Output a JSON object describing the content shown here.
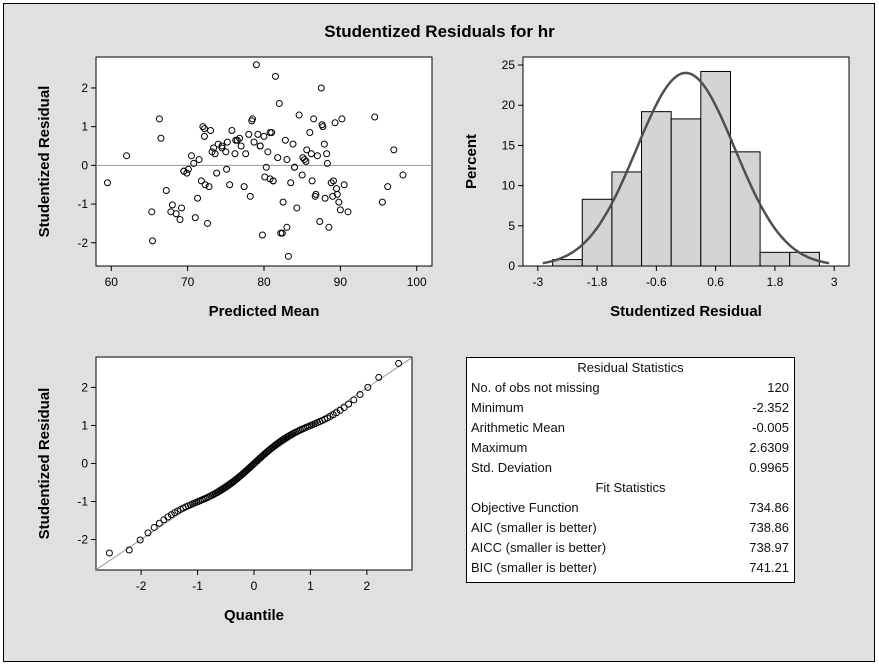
{
  "title": "Studentized Residuals for hr",
  "chart_data": [
    {
      "type": "scatter",
      "xlabel": "Predicted Mean",
      "ylabel": "Studentized Residual",
      "xlim": [
        58,
        102
      ],
      "ylim": [
        -2.6,
        2.8
      ],
      "xticks": [
        "60",
        "70",
        "80",
        "90",
        "100"
      ],
      "yticks": [
        "2",
        "1",
        "0",
        "-1",
        "-2"
      ],
      "reference_line_y": 0,
      "points": [
        [
          59.5,
          -0.45
        ],
        [
          62,
          0.25
        ],
        [
          65.3,
          -1.2
        ],
        [
          65.4,
          -1.95
        ],
        [
          66.3,
          1.2
        ],
        [
          66.5,
          0.7
        ],
        [
          67.2,
          -0.65
        ],
        [
          67.8,
          -1.2
        ],
        [
          68,
          -1.02
        ],
        [
          68.5,
          -1.25
        ],
        [
          69,
          -1.4
        ],
        [
          69.2,
          -1.1
        ],
        [
          69.5,
          -0.15
        ],
        [
          69.9,
          -0.2
        ],
        [
          70.1,
          -0.1
        ],
        [
          70.5,
          0.25
        ],
        [
          71,
          -1.35
        ],
        [
          71.3,
          -0.85
        ],
        [
          71.5,
          0.15
        ],
        [
          71.8,
          -0.4
        ],
        [
          72,
          1
        ],
        [
          72.2,
          0.75
        ],
        [
          72.3,
          -0.5
        ],
        [
          72.6,
          -1.5
        ],
        [
          72.8,
          -0.55
        ],
        [
          73,
          0.9
        ],
        [
          73.2,
          0.35
        ],
        [
          73.6,
          0.3
        ],
        [
          73.8,
          -0.2
        ],
        [
          74,
          0.55
        ],
        [
          74.5,
          0.5
        ],
        [
          75,
          0.35
        ],
        [
          75.2,
          0.6
        ],
        [
          75.5,
          -0.5
        ],
        [
          75.8,
          0.9
        ],
        [
          76.2,
          0.3
        ],
        [
          76.5,
          0.65
        ],
        [
          77,
          0.5
        ],
        [
          77.4,
          -0.55
        ],
        [
          77.6,
          0.3
        ],
        [
          78,
          0.8
        ],
        [
          78.2,
          -0.8
        ],
        [
          78.5,
          1.2
        ],
        [
          78.7,
          0.6
        ],
        [
          79,
          2.6
        ],
        [
          79.2,
          0.8
        ],
        [
          79.5,
          0.5
        ],
        [
          79.8,
          -1.8
        ],
        [
          80,
          0.75
        ],
        [
          80.3,
          -0.05
        ],
        [
          80.5,
          0.35
        ],
        [
          80.8,
          -0.35
        ],
        [
          81,
          0.85
        ],
        [
          81.2,
          -0.4
        ],
        [
          81.5,
          2.3
        ],
        [
          81.8,
          0.2
        ],
        [
          82,
          1.6
        ],
        [
          82.2,
          -1.75
        ],
        [
          82.5,
          -0.95
        ],
        [
          82.8,
          0.65
        ],
        [
          83,
          0.15
        ],
        [
          83.2,
          -2.35
        ],
        [
          83.5,
          -0.45
        ],
        [
          83.8,
          0.55
        ],
        [
          84,
          -0.05
        ],
        [
          84.3,
          -1.1
        ],
        [
          84.6,
          1.3
        ],
        [
          85,
          -0.25
        ],
        [
          85.3,
          0.15
        ],
        [
          85.6,
          0.4
        ],
        [
          86,
          0.85
        ],
        [
          86.3,
          -0.4
        ],
        [
          86.5,
          1.2
        ],
        [
          86.8,
          -0.75
        ],
        [
          87,
          0.25
        ],
        [
          87.3,
          -1.45
        ],
        [
          87.5,
          2
        ],
        [
          87.7,
          1
        ],
        [
          88,
          -0.85
        ],
        [
          88.2,
          0.3
        ],
        [
          88.5,
          -1.6
        ],
        [
          88.8,
          -0.45
        ],
        [
          89,
          -0.8
        ],
        [
          89.3,
          1.1
        ],
        [
          89.5,
          -0.6
        ],
        [
          89.8,
          -0.95
        ],
        [
          90,
          -1.15
        ],
        [
          90.2,
          1.2
        ],
        [
          90.5,
          -0.5
        ],
        [
          91,
          -1.2
        ],
        [
          94.5,
          1.25
        ],
        [
          95.5,
          -0.95
        ],
        [
          96.2,
          -0.55
        ],
        [
          97,
          0.4
        ],
        [
          98.2,
          -0.25
        ],
        [
          69.5,
          -0.15
        ],
        [
          72.2,
          0.95
        ],
        [
          74.5,
          0.45
        ],
        [
          76.3,
          0.65
        ],
        [
          78.4,
          1.15
        ],
        [
          79.5,
          0.5
        ],
        [
          80.8,
          0.85
        ],
        [
          81.2,
          -0.4
        ],
        [
          83,
          -1.6
        ],
        [
          84,
          -0.05
        ],
        [
          85.5,
          0.1
        ],
        [
          86.2,
          0.3
        ],
        [
          87.6,
          1.05
        ],
        [
          88.3,
          0.05
        ],
        [
          89.1,
          -0.4
        ],
        [
          70.8,
          0.05
        ],
        [
          73.4,
          0.45
        ],
        [
          76.8,
          0.7
        ],
        [
          80.1,
          -0.3
        ],
        [
          82.4,
          -1.75
        ],
        [
          86.7,
          -0.8
        ],
        [
          87.9,
          0.55
        ],
        [
          89.6,
          -0.75
        ],
        [
          75.1,
          -0.1
        ],
        [
          85.1,
          0.2
        ]
      ]
    },
    {
      "type": "bar",
      "xlabel": "Studentized Residual",
      "ylabel": "Percent",
      "xlim": [
        -3.3,
        3.3
      ],
      "ylim": [
        0,
        26
      ],
      "xticks": [
        "-3",
        "-1.8",
        "-0.6",
        "0.6",
        "1.8",
        "3"
      ],
      "yticks": [
        "25",
        "20",
        "15",
        "10",
        "5",
        "0"
      ],
      "bin_width": 0.6,
      "bin_midpoints": [
        -2.4,
        -1.8,
        -1.2,
        -0.6,
        0,
        0.6,
        1.2,
        1.8,
        2.4
      ],
      "values": [
        0.8,
        8.3,
        11.7,
        19.2,
        18.3,
        24.2,
        14.2,
        1.7,
        1.7
      ],
      "density_curve": {
        "type": "normal",
        "mean": -0.005,
        "sd": 0.9965,
        "n": 120
      }
    },
    {
      "type": "scatter",
      "xlabel": "Quantile",
      "ylabel": "Studentized Residual",
      "xlim": [
        -2.8,
        2.8
      ],
      "ylim": [
        -2.8,
        2.8
      ],
      "xticks": [
        "-2",
        "-1",
        "0",
        "1",
        "2"
      ],
      "yticks": [
        "2",
        "1",
        "0",
        "-1",
        "-2"
      ],
      "reference_line": {
        "intercept": -0.005,
        "slope": 0.9965
      },
      "sample_min": -2.352,
      "sample_max": 2.6309,
      "n": 120
    }
  ],
  "stats_table": {
    "residual_title": "Residual Statistics",
    "residual_rows": [
      {
        "label": "No. of obs not missing",
        "value": "120"
      },
      {
        "label": "Minimum",
        "value": "-2.352"
      },
      {
        "label": "Arithmetic Mean",
        "value": "-0.005"
      },
      {
        "label": "Maximum",
        "value": "2.6309"
      },
      {
        "label": "Std. Deviation",
        "value": "0.9965"
      }
    ],
    "fit_title": "Fit Statistics",
    "fit_rows": [
      {
        "label": "Objective Function",
        "value": "734.86"
      },
      {
        "label": "AIC (smaller is better)",
        "value": "738.86"
      },
      {
        "label": "AICC (smaller is better)",
        "value": "738.97"
      },
      {
        "label": "BIC (smaller is better)",
        "value": "741.21"
      }
    ]
  },
  "colors": {
    "panel_bg": "#e0e0e0",
    "plot_bg": "#ffffff",
    "bar_fill": "#d4d4d4",
    "curve": "#505050",
    "reference_line": "#999999",
    "marker": "#000000"
  }
}
